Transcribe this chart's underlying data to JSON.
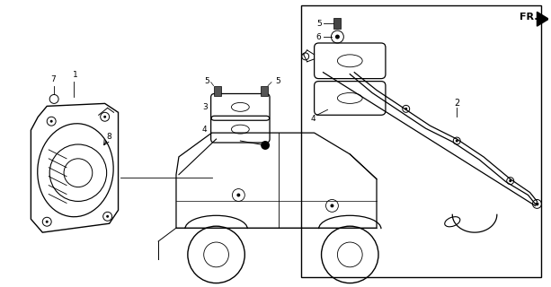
{
  "bg_color": "#ffffff",
  "line_color": "#000000",
  "fig_w": 6.13,
  "fig_h": 3.2,
  "dpi": 100
}
